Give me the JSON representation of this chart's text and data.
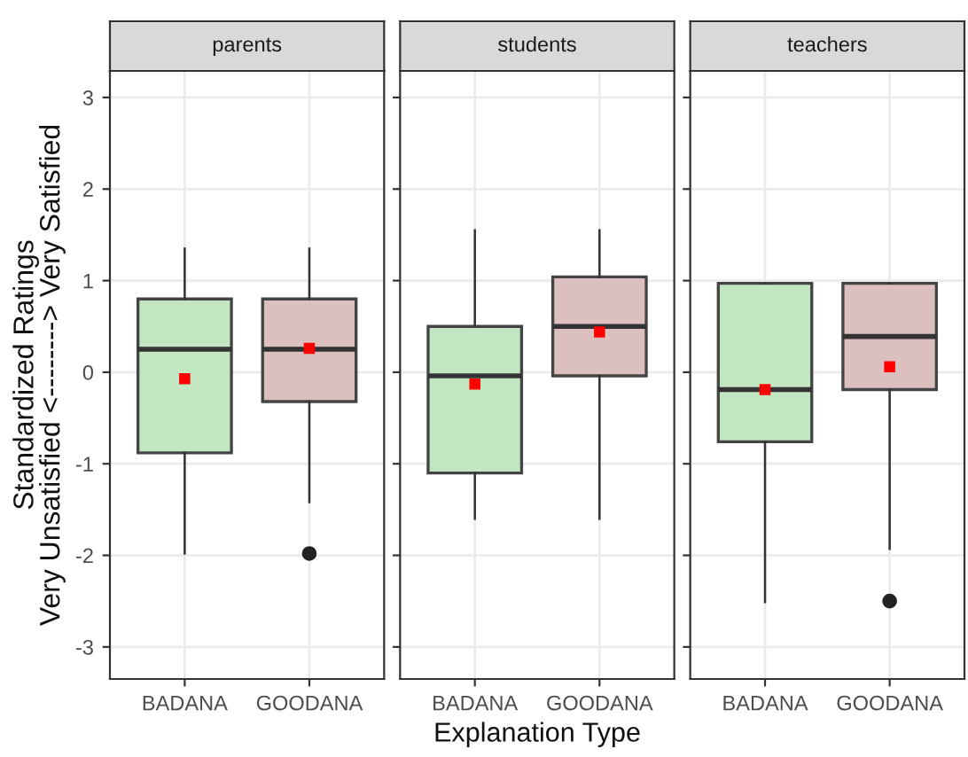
{
  "chart_data": [
    {
      "type": "box",
      "title": "parents",
      "ylabel": "Standardized Ratings\nVery Unsatisfied <--------> Very Satisfied",
      "categories": [
        "BADANA",
        "GOODANA"
      ],
      "colors": [
        "#c2e5c2",
        "#dcc0c0"
      ],
      "ylim": [
        -3.35,
        3.29
      ],
      "yticks": [
        -3,
        -2,
        -1,
        0,
        1,
        2,
        3
      ],
      "grid": true,
      "boxes": [
        {
          "low": -1.98,
          "q1": -0.88,
          "median": 0.25,
          "q3": 0.8,
          "high": 1.35,
          "mean": -0.07
        },
        {
          "low": -1.42,
          "q1": -0.32,
          "median": 0.25,
          "q3": 0.8,
          "high": 1.35,
          "mean": 0.26,
          "outliers": [
            -1.98
          ]
        }
      ]
    },
    {
      "type": "box",
      "title": "students",
      "xlabel": "Explanation Type",
      "categories": [
        "BADANA",
        "GOODANA"
      ],
      "colors": [
        "#c2e5c2",
        "#dcc0c0"
      ],
      "ylim": [
        -3.35,
        3.29
      ],
      "yticks": [
        -3,
        -2,
        -1,
        0,
        1,
        2,
        3
      ],
      "grid": true,
      "tick_labels": "x",
      "boxes": [
        {
          "low": -1.6,
          "q1": -1.1,
          "median": -0.04,
          "q3": 0.5,
          "high": 1.55,
          "mean": -0.13
        },
        {
          "low": -1.6,
          "q1": -0.04,
          "median": 0.5,
          "q3": 1.04,
          "high": 1.55,
          "mean": 0.44
        }
      ]
    },
    {
      "type": "box",
      "title": "teachers",
      "categories": [
        "BADANA",
        "GOODANA"
      ],
      "colors": [
        "#c2e5c2",
        "#dcc0c0"
      ],
      "ylim": [
        -3.35,
        3.29
      ],
      "yticks": [
        -3,
        -2,
        -1,
        0,
        1,
        2,
        3
      ],
      "grid": true,
      "tick_labels": "x",
      "boxes": [
        {
          "low": -2.51,
          "q1": -0.76,
          "median": -0.19,
          "q3": 0.97,
          "high": 0.97,
          "mean": -0.19
        },
        {
          "low": -1.93,
          "q1": -0.19,
          "median": 0.39,
          "q3": 0.97,
          "high": 0.97,
          "mean": 0.06,
          "outliers": [
            -2.5
          ]
        }
      ]
    }
  ]
}
